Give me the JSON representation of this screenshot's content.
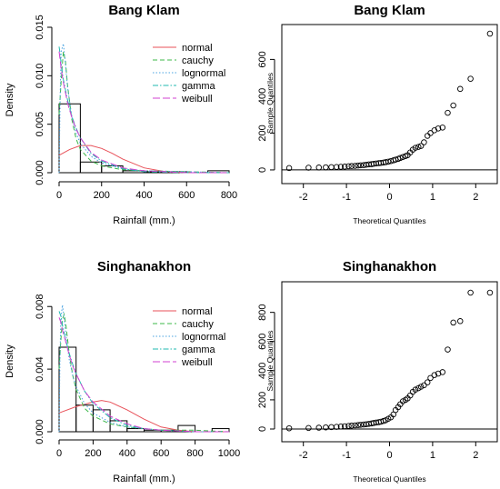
{
  "colors": {
    "normal": "#e8525a",
    "cauchy": "#3cb84a",
    "lognormal": "#4aa3e0",
    "gamma": "#20b8b0",
    "weibull": "#d040d0"
  },
  "chart_data": [
    {
      "type": "histogram",
      "title": "Bang Klam",
      "xlabel": "Rainfall (mm.)",
      "ylabel": "Density",
      "xlim": [
        0,
        800
      ],
      "ylim": [
        0,
        0.015
      ],
      "x_ticks": [
        "0",
        "200",
        "400",
        "600",
        "800"
      ],
      "y_ticks": [
        "0.000",
        "0.005",
        "0.010",
        "0.015"
      ],
      "legend": [
        "normal",
        "cauchy",
        "lognormal",
        "gamma",
        "weibull"
      ],
      "legend_position": "top-right",
      "bins": [
        {
          "from": 0,
          "to": 100,
          "density": 0.0071
        },
        {
          "from": 100,
          "to": 200,
          "density": 0.0011
        },
        {
          "from": 200,
          "to": 300,
          "density": 0.0007
        },
        {
          "from": 300,
          "to": 400,
          "density": 0.0002
        },
        {
          "from": 400,
          "to": 500,
          "density": 0.0001
        },
        {
          "from": 500,
          "to": 600,
          "density": 0.0001
        },
        {
          "from": 600,
          "to": 700,
          "density": 0.0
        },
        {
          "from": 700,
          "to": 800,
          "density": 0.0002
        }
      ],
      "curves": {
        "normal": {
          "x": [
            0,
            50,
            100,
            150,
            200,
            250,
            300,
            400,
            500,
            600,
            700,
            800
          ],
          "y": [
            0.0018,
            0.0024,
            0.0028,
            0.0028,
            0.0025,
            0.002,
            0.0014,
            0.0005,
            0.0001,
            0.0,
            0.0,
            0.0
          ]
        },
        "cauchy": {
          "x": [
            0,
            10,
            20,
            30,
            40,
            60,
            80,
            100,
            150,
            200,
            300,
            400,
            600,
            800
          ],
          "y": [
            0.006,
            0.0095,
            0.0125,
            0.0115,
            0.009,
            0.0055,
            0.0035,
            0.0024,
            0.0012,
            0.0007,
            0.0003,
            0.0002,
            0.0001,
            0.0
          ]
        },
        "lognormal": {
          "x": [
            0,
            5,
            10,
            20,
            30,
            40,
            60,
            80,
            100,
            150,
            200,
            300,
            400,
            600,
            800
          ],
          "y": [
            0.0,
            0.008,
            0.0125,
            0.0133,
            0.0112,
            0.0088,
            0.0058,
            0.0041,
            0.003,
            0.0017,
            0.001,
            0.0004,
            0.0002,
            0.0001,
            0.0
          ]
        },
        "gamma": {
          "x": [
            0,
            5,
            10,
            20,
            40,
            60,
            80,
            100,
            150,
            200,
            300,
            400,
            600,
            800
          ],
          "y": [
            0.013,
            0.0122,
            0.0112,
            0.0096,
            0.0075,
            0.0058,
            0.0046,
            0.0036,
            0.002,
            0.0012,
            0.0004,
            0.0001,
            0.0,
            0.0
          ]
        },
        "weibull": {
          "x": [
            0,
            5,
            10,
            20,
            40,
            60,
            80,
            100,
            150,
            200,
            300,
            400,
            600,
            800
          ],
          "y": [
            0.0125,
            0.0116,
            0.0107,
            0.0093,
            0.0072,
            0.0057,
            0.0045,
            0.0036,
            0.0021,
            0.0013,
            0.0005,
            0.0002,
            0.0,
            0.0
          ]
        }
      }
    },
    {
      "type": "scatter",
      "title": "Bang Klam",
      "xlabel": "Theoretical Quantiles",
      "ylabel": "Sample Quantiles",
      "xlim": [
        -2.5,
        2.5
      ],
      "ylim": [
        -25,
        750
      ],
      "x_ticks": [
        "-2",
        "-1",
        "0",
        "1",
        "2"
      ],
      "y_ticks": [
        "0",
        "200",
        "400",
        "600"
      ],
      "reference_line": [
        [
          -2.5,
          0
        ],
        [
          2.5,
          0
        ]
      ],
      "points": {
        "x": [
          -2.33,
          -1.88,
          -1.64,
          -1.48,
          -1.35,
          -1.23,
          -1.13,
          -1.04,
          -0.95,
          -0.88,
          -0.8,
          -0.73,
          -0.67,
          -0.6,
          -0.54,
          -0.48,
          -0.42,
          -0.37,
          -0.31,
          -0.25,
          -0.2,
          -0.14,
          -0.09,
          -0.03,
          0.03,
          0.09,
          0.14,
          0.2,
          0.25,
          0.31,
          0.37,
          0.42,
          0.48,
          0.54,
          0.6,
          0.67,
          0.73,
          0.8,
          0.88,
          0.95,
          1.04,
          1.13,
          1.23,
          1.35,
          1.48,
          1.64,
          1.88,
          2.33
        ],
        "y": [
          10,
          12,
          13,
          14,
          15,
          16,
          17,
          18,
          20,
          21,
          22,
          24,
          25,
          26,
          28,
          30,
          31,
          33,
          35,
          37,
          38,
          40,
          42,
          45,
          48,
          52,
          56,
          60,
          65,
          70,
          75,
          80,
          95,
          110,
          120,
          125,
          130,
          150,
          185,
          200,
          215,
          225,
          230,
          310,
          350,
          440,
          495,
          740
        ]
      }
    },
    {
      "type": "histogram",
      "title": "Singhanakhon",
      "xlabel": "Rainfall (mm.)",
      "ylabel": "Density",
      "xlim": [
        0,
        1000
      ],
      "ylim": [
        0,
        0.009
      ],
      "x_ticks": [
        "0",
        "200",
        "400",
        "600",
        "800",
        "1000"
      ],
      "y_ticks": [
        "0.000",
        "0.004",
        "0.008"
      ],
      "legend": [
        "normal",
        "cauchy",
        "lognormal",
        "gamma",
        "weibull"
      ],
      "legend_position": "top-right",
      "bins": [
        {
          "from": 0,
          "to": 100,
          "density": 0.0054
        },
        {
          "from": 100,
          "to": 200,
          "density": 0.0017
        },
        {
          "from": 200,
          "to": 300,
          "density": 0.0014
        },
        {
          "from": 300,
          "to": 400,
          "density": 0.0007
        },
        {
          "from": 400,
          "to": 500,
          "density": 0.0002
        },
        {
          "from": 500,
          "to": 600,
          "density": 0.0001
        },
        {
          "from": 600,
          "to": 700,
          "density": 0.0001
        },
        {
          "from": 700,
          "to": 800,
          "density": 0.0004
        },
        {
          "from": 800,
          "to": 900,
          "density": 0.0
        },
        {
          "from": 900,
          "to": 1000,
          "density": 0.0002
        }
      ],
      "curves": {
        "normal": {
          "x": [
            0,
            100,
            200,
            250,
            300,
            400,
            500,
            600,
            700,
            800,
            1000
          ],
          "y": [
            0.0012,
            0.0016,
            0.0019,
            0.002,
            0.0019,
            0.0014,
            0.0008,
            0.0003,
            0.0001,
            0.0,
            0.0
          ]
        },
        "cauchy": {
          "x": [
            0,
            10,
            20,
            30,
            40,
            60,
            80,
            100,
            150,
            200,
            300,
            400,
            600,
            800,
            1000
          ],
          "y": [
            0.004,
            0.0058,
            0.0072,
            0.0075,
            0.0068,
            0.005,
            0.0036,
            0.0027,
            0.0015,
            0.001,
            0.0005,
            0.0003,
            0.0001,
            0.0001,
            0.0
          ]
        },
        "lognormal": {
          "x": [
            0,
            5,
            10,
            20,
            30,
            40,
            60,
            80,
            100,
            150,
            200,
            300,
            400,
            600,
            800,
            1000
          ],
          "y": [
            0.0,
            0.0045,
            0.0072,
            0.0081,
            0.0072,
            0.0062,
            0.0046,
            0.0036,
            0.0029,
            0.0018,
            0.0012,
            0.0006,
            0.0003,
            0.0001,
            0.0,
            0.0
          ]
        },
        "gamma": {
          "x": [
            0,
            10,
            20,
            40,
            60,
            80,
            100,
            150,
            200,
            300,
            400,
            500,
            600,
            800,
            1000
          ],
          "y": [
            0.0077,
            0.0074,
            0.0068,
            0.0058,
            0.005,
            0.0043,
            0.0037,
            0.0026,
            0.0018,
            0.0009,
            0.0004,
            0.0002,
            0.0001,
            0.0,
            0.0
          ]
        },
        "weibull": {
          "x": [
            0,
            10,
            20,
            40,
            60,
            80,
            100,
            150,
            200,
            300,
            400,
            500,
            600,
            800,
            1000
          ],
          "y": [
            0.0073,
            0.007,
            0.0065,
            0.0057,
            0.0049,
            0.0042,
            0.0037,
            0.0026,
            0.0019,
            0.001,
            0.0005,
            0.0002,
            0.0001,
            0.0,
            0.0
          ]
        }
      }
    },
    {
      "type": "scatter",
      "title": "Singhanakhon",
      "xlabel": "Theoretical Quantiles",
      "ylabel": "Sample Quantiles",
      "xlim": [
        -2.5,
        2.5
      ],
      "ylim": [
        -25,
        960
      ],
      "x_ticks": [
        "-2",
        "-1",
        "0",
        "1",
        "2"
      ],
      "y_ticks": [
        "0",
        "200",
        "400",
        "600",
        "800"
      ],
      "reference_line": [
        [
          -2.5,
          0
        ],
        [
          2.5,
          0
        ]
      ],
      "points": {
        "x": [
          -2.33,
          -1.88,
          -1.64,
          -1.48,
          -1.35,
          -1.23,
          -1.13,
          -1.04,
          -0.95,
          -0.88,
          -0.8,
          -0.73,
          -0.67,
          -0.6,
          -0.54,
          -0.48,
          -0.42,
          -0.37,
          -0.31,
          -0.25,
          -0.2,
          -0.14,
          -0.09,
          -0.03,
          0.03,
          0.09,
          0.14,
          0.2,
          0.25,
          0.31,
          0.37,
          0.42,
          0.48,
          0.54,
          0.6,
          0.67,
          0.73,
          0.8,
          0.88,
          0.95,
          1.04,
          1.13,
          1.23,
          1.35,
          1.48,
          1.64,
          1.88,
          2.33
        ],
        "y": [
          5,
          7,
          9,
          11,
          13,
          15,
          17,
          19,
          21,
          23,
          25,
          27,
          29,
          31,
          33,
          35,
          38,
          41,
          44,
          47,
          50,
          55,
          60,
          70,
          80,
          100,
          130,
          150,
          170,
          190,
          200,
          210,
          230,
          255,
          270,
          280,
          290,
          300,
          320,
          350,
          370,
          380,
          390,
          545,
          730,
          740,
          935,
          935
        ]
      }
    }
  ]
}
